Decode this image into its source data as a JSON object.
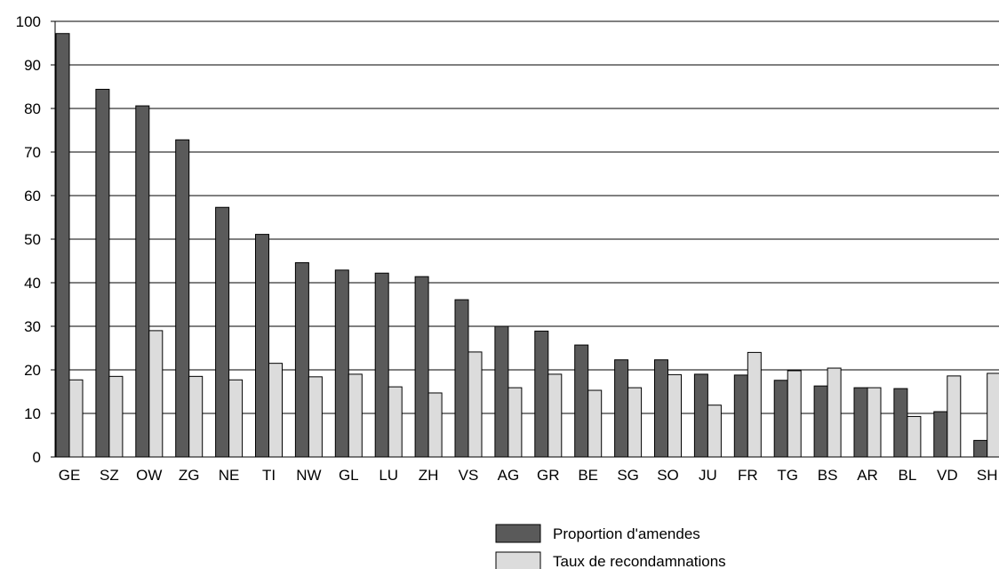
{
  "chart_data": {
    "type": "bar",
    "title": "",
    "xlabel": "",
    "ylabel": "",
    "ylim": [
      0,
      100
    ],
    "yticks": [
      0,
      10,
      20,
      30,
      40,
      50,
      60,
      70,
      80,
      90,
      100
    ],
    "grid": "horizontal",
    "legend_position": "bottom-right",
    "categories": [
      "GE",
      "SZ",
      "OW",
      "ZG",
      "NE",
      "TI",
      "NW",
      "GL",
      "LU",
      "ZH",
      "VS",
      "AG",
      "GR",
      "BE",
      "SG",
      "SO",
      "JU",
      "FR",
      "TG",
      "BS",
      "AR",
      "BL",
      "VD",
      "SH"
    ],
    "series": [
      {
        "name": "Proportion d'amendes",
        "color": "#5a5a5a",
        "values": [
          97.2,
          84.4,
          80.6,
          72.8,
          57.3,
          51.1,
          44.6,
          42.9,
          42.2,
          41.4,
          36.1,
          30.0,
          28.9,
          25.7,
          22.3,
          22.3,
          19.0,
          18.8,
          17.6,
          16.3,
          15.9,
          15.7,
          10.4,
          3.8
        ]
      },
      {
        "name": "Taux de recondamnations",
        "color": "#dcdcdc",
        "values": [
          17.7,
          18.5,
          29.0,
          18.5,
          17.7,
          21.5,
          18.4,
          19.0,
          16.1,
          14.7,
          24.1,
          15.9,
          19.0,
          15.3,
          15.9,
          18.9,
          11.9,
          24.0,
          19.8,
          20.4,
          15.9,
          9.3,
          18.6,
          19.2
        ]
      }
    ]
  }
}
